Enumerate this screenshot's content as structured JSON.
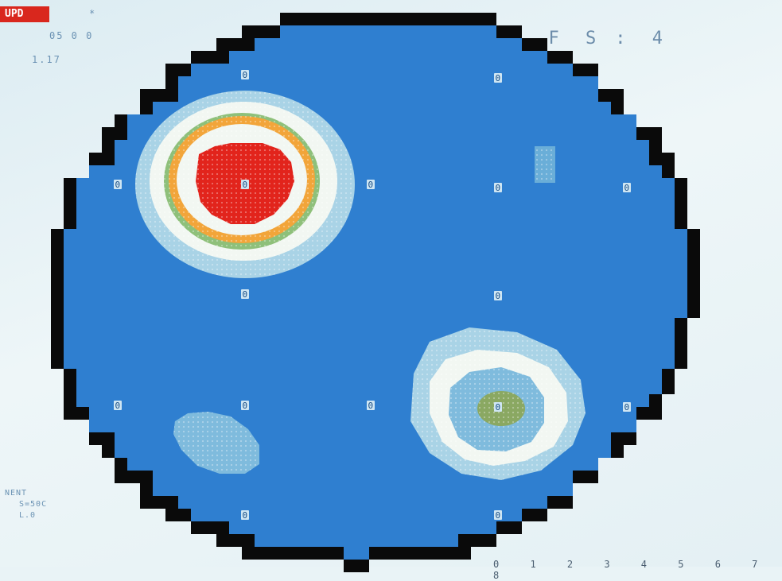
{
  "header": {
    "corner_tag": "UPD",
    "top_left_line1": "05 0 0",
    "top_left_line2": "1.17",
    "top_left_mark": "*"
  },
  "frame_label": {
    "label": "F S",
    "value": ": 4"
  },
  "side_notes": {
    "line1": "NENT",
    "line2": "S=50C",
    "line3": "L.0"
  },
  "scale_strip": "0 1 2 3 4 5 6 7 8",
  "sensor_glyph": "0",
  "colors": {
    "background": "#2f7fd0",
    "rim": "#0a0a0a",
    "hot_red": "#e2241c",
    "warm_orange": "#f2a53a",
    "pale_white": "#f2f7f2",
    "light_cyan": "#a9d3e6",
    "mid_cyan": "#7fbbdd",
    "olive_green": "#8aa862"
  }
}
